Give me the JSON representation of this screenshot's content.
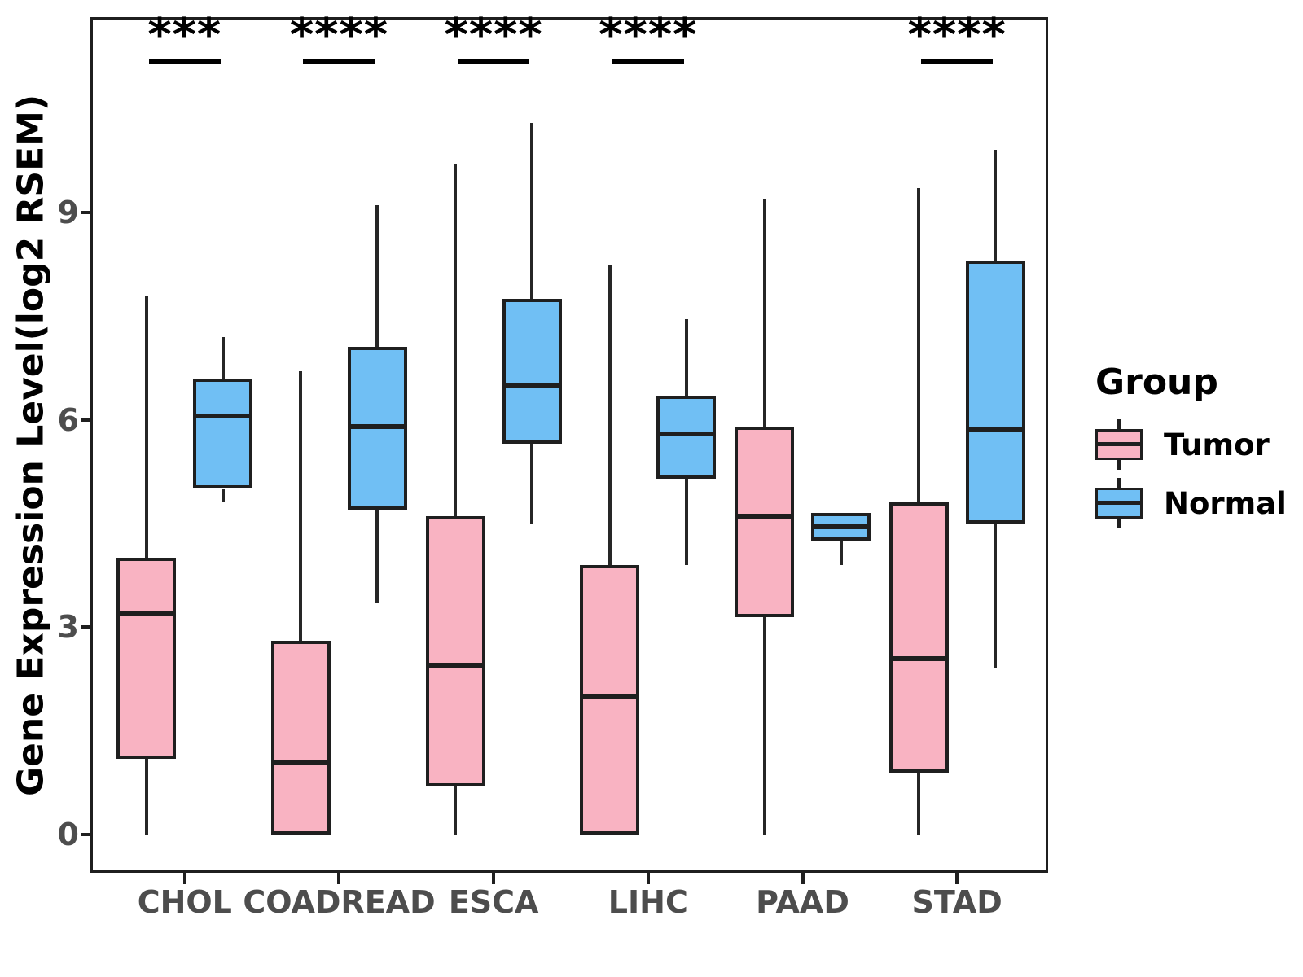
{
  "chart_data": {
    "type": "boxplot",
    "title": "",
    "xlabel": "",
    "ylabel": "Gene Expression Level(log2 RSEM)",
    "y_ticks": [
      0,
      3,
      6,
      9
    ],
    "ylim": [
      -0.55,
      11.8
    ],
    "grid": false,
    "categories": [
      "CHOL",
      "COADREAD",
      "ESCA",
      "LIHC",
      "PAAD",
      "STAD"
    ],
    "groups": [
      "Tumor",
      "Normal"
    ],
    "legend": {
      "title": "Group",
      "position": "right",
      "items": [
        {
          "name": "Tumor",
          "color": "#F9B3C2"
        },
        {
          "name": "Normal",
          "color": "#70BFF4"
        }
      ]
    },
    "style": {
      "tumor_fill": "#F9B3C2",
      "normal_fill": "#70BFF4",
      "box_border": "#1f1f1f",
      "axis_color": "#1f1f1f",
      "tick_label_color": "#4d4d4d",
      "significance_color": "#000000"
    },
    "series": [
      {
        "name": "Tumor",
        "color": "#F9B3C2",
        "boxes": [
          {
            "category": "CHOL",
            "whisker_low": 0,
            "q1": 1.1,
            "median": 3.2,
            "q3": 4.0,
            "whisker_high": 7.8
          },
          {
            "category": "COADREAD",
            "whisker_low": 0,
            "q1": 0,
            "median": 1.05,
            "q3": 2.8,
            "whisker_high": 6.7
          },
          {
            "category": "ESCA",
            "whisker_low": 0,
            "q1": 0.7,
            "median": 2.45,
            "q3": 4.6,
            "whisker_high": 9.7
          },
          {
            "category": "LIHC",
            "whisker_low": 0,
            "q1": 0,
            "median": 2.0,
            "q3": 3.9,
            "whisker_high": 8.25
          },
          {
            "category": "PAAD",
            "whisker_low": 0,
            "q1": 3.15,
            "median": 4.6,
            "q3": 5.9,
            "whisker_high": 9.2
          },
          {
            "category": "STAD",
            "whisker_low": 0,
            "q1": 0.9,
            "median": 2.55,
            "q3": 4.8,
            "whisker_high": 9.35
          }
        ]
      },
      {
        "name": "Normal",
        "color": "#70BFF4",
        "boxes": [
          {
            "category": "CHOL",
            "whisker_low": 4.8,
            "q1": 5.0,
            "median": 6.05,
            "q3": 6.6,
            "whisker_high": 7.2
          },
          {
            "category": "COADREAD",
            "whisker_low": 3.35,
            "q1": 4.7,
            "median": 5.9,
            "q3": 7.05,
            "whisker_high": 9.1
          },
          {
            "category": "ESCA",
            "whisker_low": 4.5,
            "q1": 5.65,
            "median": 6.5,
            "q3": 7.75,
            "whisker_high": 10.3
          },
          {
            "category": "LIHC",
            "whisker_low": 3.9,
            "q1": 5.15,
            "median": 5.8,
            "q3": 6.35,
            "whisker_high": 7.45
          },
          {
            "category": "PAAD",
            "whisker_low": 3.9,
            "q1": 4.25,
            "median": 4.45,
            "q3": 4.65,
            "whisker_high": 4.65
          },
          {
            "category": "STAD",
            "whisker_low": 2.4,
            "q1": 4.5,
            "median": 5.85,
            "q3": 8.3,
            "whisker_high": 9.9
          }
        ]
      }
    ],
    "significance": [
      {
        "category": "CHOL",
        "stars": "***"
      },
      {
        "category": "COADREAD",
        "stars": "****"
      },
      {
        "category": "ESCA",
        "stars": "****"
      },
      {
        "category": "LIHC",
        "stars": "****"
      },
      {
        "category": "STAD",
        "stars": "****"
      }
    ]
  }
}
